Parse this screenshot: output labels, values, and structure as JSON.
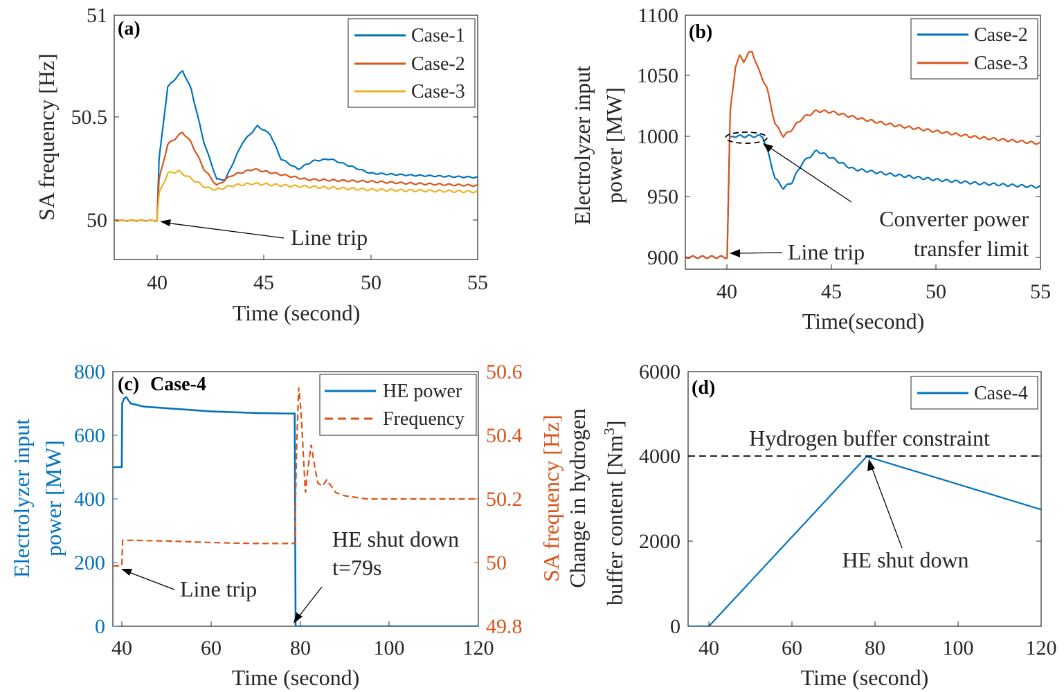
{
  "colors": {
    "blue": "#0072BD",
    "orange": "#D95319",
    "yellow": "#EDB120",
    "black": "#000000",
    "axis": "#262626"
  },
  "chart_data": [
    {
      "id": "a",
      "panel_label": "(a)",
      "type": "line",
      "xlabel": "Time (second)",
      "ylabel": "SA frequency [Hz]",
      "xlim": [
        38,
        55
      ],
      "ylim": [
        49.81,
        51
      ],
      "xticks": [
        "40",
        "45",
        "50",
        "55"
      ],
      "yticks": [
        "50",
        "50.5",
        "51"
      ],
      "legend_position": "top-right",
      "grid": false,
      "series": [
        {
          "name": "Case-1",
          "color": "#0072BD",
          "osc": 0.003,
          "points": [
            [
              38,
              50
            ],
            [
              40,
              50
            ],
            [
              40.1,
              50.3
            ],
            [
              40.5,
              50.65
            ],
            [
              41.2,
              50.73
            ],
            [
              41.6,
              50.64
            ],
            [
              42.2,
              50.38
            ],
            [
              42.8,
              50.2
            ],
            [
              43.2,
              50.2
            ],
            [
              44,
              50.38
            ],
            [
              44.7,
              50.46
            ],
            [
              45.3,
              50.42
            ],
            [
              45.8,
              50.3
            ],
            [
              46.6,
              50.25
            ],
            [
              47.3,
              50.29
            ],
            [
              48.1,
              50.3
            ],
            [
              48.9,
              50.27
            ],
            [
              50,
              50.23
            ],
            [
              52,
              50.22
            ],
            [
              55,
              50.21
            ]
          ]
        },
        {
          "name": "Case-2",
          "color": "#D95319",
          "osc": 0.004,
          "points": [
            [
              38,
              50
            ],
            [
              40,
              50
            ],
            [
              40.1,
              50.2
            ],
            [
              40.5,
              50.37
            ],
            [
              41.2,
              50.43
            ],
            [
              41.6,
              50.38
            ],
            [
              42.2,
              50.25
            ],
            [
              42.8,
              50.17
            ],
            [
              43.5,
              50.22
            ],
            [
              44.5,
              50.25
            ],
            [
              45.5,
              50.23
            ],
            [
              47,
              50.2
            ],
            [
              50,
              50.19
            ],
            [
              52,
              50.18
            ],
            [
              55,
              50.17
            ]
          ]
        },
        {
          "name": "Case-3",
          "color": "#EDB120",
          "osc": 0.005,
          "points": [
            [
              38,
              50
            ],
            [
              40,
              50
            ],
            [
              40.1,
              50.13
            ],
            [
              40.5,
              50.23
            ],
            [
              41,
              50.24
            ],
            [
              41.5,
              50.21
            ],
            [
              42.3,
              50.16
            ],
            [
              42.8,
              50.15
            ],
            [
              43.5,
              50.17
            ],
            [
              44.5,
              50.18
            ],
            [
              46,
              50.17
            ],
            [
              50,
              50.15
            ],
            [
              55,
              50.14
            ]
          ]
        }
      ],
      "annotations": [
        {
          "text": "Line trip"
        }
      ]
    },
    {
      "id": "b",
      "panel_label": "(b)",
      "type": "line",
      "xlabel": "Time(second)",
      "ylabel_line1": "Electrolyzer input",
      "ylabel_line2": "power [MW]",
      "xlim": [
        38,
        55
      ],
      "ylim": [
        890,
        1100
      ],
      "xticks": [
        "40",
        "45",
        "50",
        "55"
      ],
      "yticks": [
        "900",
        "950",
        "1000",
        "1050",
        "1100"
      ],
      "legend_position": "top-right",
      "grid": false,
      "series": [
        {
          "name": "Case-2",
          "color": "#0072BD",
          "osc": 1.2,
          "points": [
            [
              38,
              900
            ],
            [
              40,
              900
            ],
            [
              40.12,
              998
            ],
            [
              40.3,
              1000
            ],
            [
              41.7,
              1000
            ],
            [
              41.9,
              990
            ],
            [
              42.3,
              965
            ],
            [
              42.7,
              957
            ],
            [
              43.1,
              962
            ],
            [
              43.6,
              978
            ],
            [
              44.3,
              988
            ],
            [
              45,
              982
            ],
            [
              46,
              973
            ],
            [
              48,
              968
            ],
            [
              50,
              964
            ],
            [
              52,
              961
            ],
            [
              55,
              958
            ]
          ]
        },
        {
          "name": "Case-3",
          "color": "#D95319",
          "osc": 1.2,
          "points": [
            [
              38,
              900
            ],
            [
              40,
              900
            ],
            [
              40.15,
              1020
            ],
            [
              40.4,
              1058
            ],
            [
              40.6,
              1066
            ],
            [
              40.8,
              1062
            ],
            [
              41,
              1068
            ],
            [
              41.2,
              1070
            ],
            [
              41.5,
              1055
            ],
            [
              41.9,
              1040
            ],
            [
              42.3,
              1010
            ],
            [
              42.7,
              1000
            ],
            [
              43,
              1004
            ],
            [
              43.6,
              1015
            ],
            [
              44.3,
              1021
            ],
            [
              45,
              1020
            ],
            [
              46.5,
              1014
            ],
            [
              48,
              1009
            ],
            [
              50,
              1004
            ],
            [
              52,
              999
            ],
            [
              55,
              994
            ]
          ]
        }
      ],
      "annotations": [
        {
          "text": "Line trip"
        },
        {
          "text_line1": "Converter power",
          "text_line2": "transfer limit"
        }
      ]
    },
    {
      "id": "c",
      "panel_label": "(c)",
      "panel_title": "Case-4",
      "type": "line",
      "xlabel": "Time (second)",
      "ylabel_left_line1": "Electrolyzer input",
      "ylabel_left_line2": "power [MW]",
      "ylabel_right": "SA frequency [Hz]",
      "xlim": [
        38,
        120
      ],
      "ylim_left": [
        0,
        800
      ],
      "ylim_right": [
        49.8,
        50.6
      ],
      "xticks": [
        "40",
        "60",
        "80",
        "100",
        "120"
      ],
      "yticks_left": [
        "0",
        "200",
        "400",
        "600",
        "800"
      ],
      "yticks_right": [
        "49.8",
        "50",
        "50.2",
        "50.4",
        "50.6"
      ],
      "legend_position": "top-right",
      "grid": false,
      "series": [
        {
          "name": "HE power",
          "color": "#0072BD",
          "axis": "left",
          "style": "solid",
          "points": [
            [
              38,
              500
            ],
            [
              40,
              500
            ],
            [
              40.1,
              700
            ],
            [
              40.5,
              715
            ],
            [
              41,
              720
            ],
            [
              42,
              700
            ],
            [
              45,
              690
            ],
            [
              50,
              685
            ],
            [
              60,
              675
            ],
            [
              70,
              670
            ],
            [
              78.8,
              668
            ],
            [
              79,
              0
            ],
            [
              120,
              0
            ]
          ]
        },
        {
          "name": "Frequency",
          "color": "#D95319",
          "axis": "right",
          "style": "dashed",
          "points": [
            [
              38,
              49.99
            ],
            [
              40,
              49.99
            ],
            [
              40.2,
              50.07
            ],
            [
              42,
              50.07
            ],
            [
              50,
              50.068
            ],
            [
              60,
              50.063
            ],
            [
              70,
              50.06
            ],
            [
              78.8,
              50.06
            ],
            [
              79.2,
              50.35
            ],
            [
              79.7,
              50.55
            ],
            [
              80.2,
              50.48
            ],
            [
              80.7,
              50.35
            ],
            [
              81.2,
              50.22
            ],
            [
              81.8,
              50.3
            ],
            [
              82.5,
              50.37
            ],
            [
              83.3,
              50.3
            ],
            [
              84,
              50.25
            ],
            [
              85,
              50.24
            ],
            [
              86,
              50.26
            ],
            [
              87,
              50.24
            ],
            [
              88,
              50.22
            ],
            [
              90,
              50.21
            ],
            [
              95,
              50.2
            ],
            [
              120,
              50.2
            ]
          ]
        }
      ],
      "annotations": [
        {
          "text": "Line trip"
        },
        {
          "text_line1": "HE shut down",
          "text_line2": "t=79s"
        }
      ]
    },
    {
      "id": "d",
      "panel_label": "(d)",
      "type": "line",
      "xlabel": "Time (second)",
      "ylabel_line1": "Change in hydrogen",
      "ylabel_line2": "buffer content [Nm",
      "ylabel_sup": "3",
      "ylabel_close": "]",
      "xlim": [
        35,
        120
      ],
      "ylim": [
        0,
        6000
      ],
      "xticks": [
        "40",
        "60",
        "80",
        "100",
        "120"
      ],
      "yticks": [
        "0",
        "2000",
        "4000",
        "6000"
      ],
      "legend_position": "top-right",
      "grid": false,
      "series": [
        {
          "name": "Case-4",
          "color": "#0072BD",
          "points": [
            [
              35,
              0
            ],
            [
              40,
              0
            ],
            [
              78,
              4000
            ],
            [
              120,
              2750
            ]
          ]
        }
      ],
      "constraint": {
        "y": 4000,
        "label": "Hydrogen buffer constraint"
      },
      "annotations": [
        {
          "text": "HE shut down"
        }
      ]
    }
  ]
}
